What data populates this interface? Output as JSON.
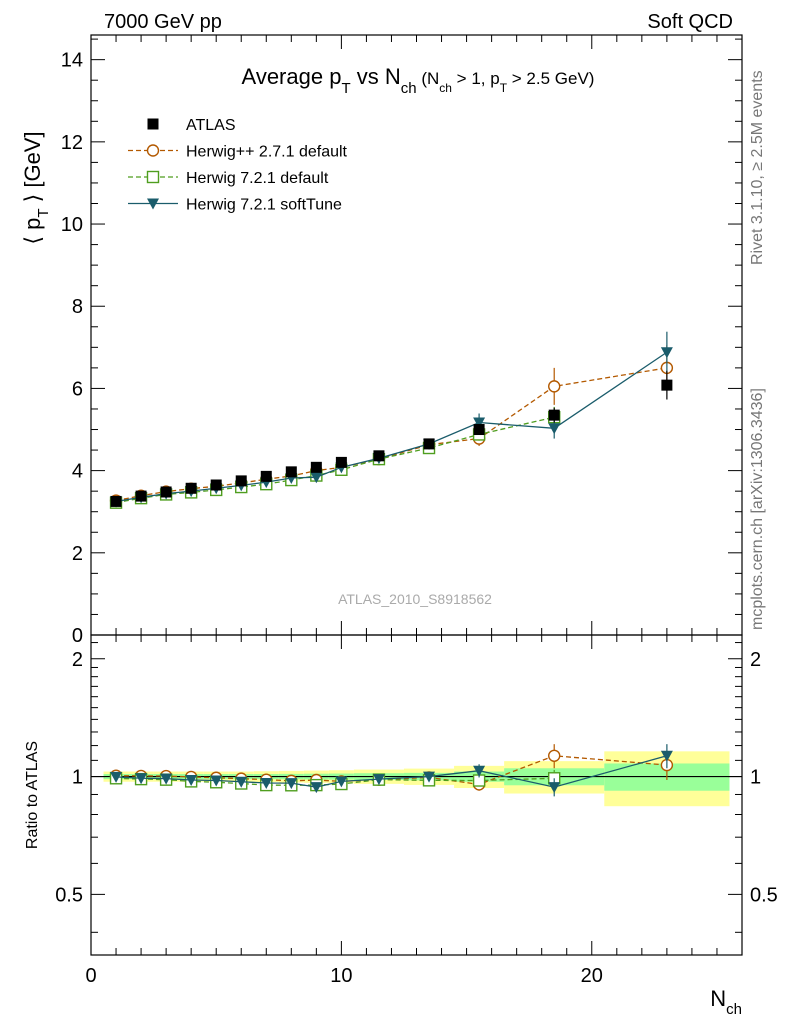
{
  "header": {
    "left": "7000 GeV pp",
    "right": "Soft QCD"
  },
  "side_text": {
    "rivet": "Rivet 3.1.10, ≥ 2.5M events",
    "mcplots": "mcplots.cern.ch [arXiv:1306.3436]"
  },
  "watermark": "ATLAS_2010_S8918562",
  "chart_data": [
    {
      "type": "scatter",
      "title": "Average p_T vs N_ch (N_ch > 1, p_T > 2.5 GeV)",
      "title_parts": {
        "main": "Average p",
        "main_sub": "T",
        "vs": " vs N",
        "vs_sub": "ch",
        "cut1": " (N",
        "cut1_sub": "ch",
        "cut2": " > 1, p",
        "cut2_sub": "T",
        "cut3": " > 2.5 GeV)"
      },
      "ylabel": "⟨ p_T ⟩ [GeV]",
      "ylabel_parts": {
        "open": "⟨ p",
        "sub": "T",
        "close": " ⟩ [GeV]"
      },
      "xlim": [
        0,
        26
      ],
      "ylim": [
        0,
        14.6
      ],
      "y_ticks": [
        0,
        2,
        4,
        6,
        8,
        10,
        12,
        14
      ],
      "legend_position": "top-left",
      "x": [
        1,
        2,
        3,
        4,
        5,
        6,
        7,
        8,
        9,
        10,
        11.5,
        13.5,
        15.5,
        18.5,
        23
      ],
      "series": [
        {
          "name": "ATLAS",
          "color": "#000000",
          "marker": "square-filled",
          "values": [
            3.25,
            3.38,
            3.48,
            3.57,
            3.65,
            3.75,
            3.86,
            3.97,
            4.08,
            4.2,
            4.36,
            4.65,
            5.0,
            5.35,
            6.08
          ],
          "errors": [
            0.04,
            0.04,
            0.04,
            0.04,
            0.04,
            0.05,
            0.05,
            0.05,
            0.06,
            0.06,
            0.07,
            0.08,
            0.12,
            0.18,
            0.35
          ]
        },
        {
          "name": "Herwig++ 2.7.1 default",
          "color": "#b35900",
          "marker": "circle-open",
          "line": "dashed",
          "values": [
            3.27,
            3.39,
            3.49,
            3.56,
            3.62,
            3.7,
            3.79,
            3.87,
            4.0,
            4.08,
            4.28,
            4.63,
            4.78,
            6.05,
            6.5
          ],
          "errors": [
            0.02,
            0.02,
            0.02,
            0.02,
            0.03,
            0.03,
            0.03,
            0.03,
            0.04,
            0.04,
            0.06,
            0.08,
            0.18,
            0.45,
            0.55
          ]
        },
        {
          "name": "Herwig 7.2.1 default",
          "color": "#4f9e1f",
          "marker": "square-open",
          "line": "dashed",
          "values": [
            3.22,
            3.33,
            3.42,
            3.47,
            3.53,
            3.6,
            3.67,
            3.77,
            3.88,
            4.02,
            4.28,
            4.55,
            4.88,
            5.3,
            null
          ],
          "errors": [
            0.02,
            0.02,
            0.02,
            0.02,
            0.03,
            0.03,
            0.03,
            0.03,
            0.04,
            0.04,
            0.06,
            0.08,
            0.15,
            0.25,
            null
          ]
        },
        {
          "name": "Herwig 7.2.1 softTune",
          "color": "#1a5c6b",
          "marker": "triangle-down-filled",
          "line": "solid",
          "values": [
            3.25,
            3.35,
            3.44,
            3.5,
            3.57,
            3.64,
            3.72,
            3.82,
            3.84,
            4.08,
            4.3,
            4.65,
            5.17,
            5.03,
            6.88
          ],
          "errors": [
            0.02,
            0.02,
            0.02,
            0.02,
            0.03,
            0.03,
            0.03,
            0.03,
            0.04,
            0.04,
            0.06,
            0.08,
            0.22,
            0.25,
            0.5
          ]
        }
      ]
    },
    {
      "type": "scatter",
      "ylabel": "Ratio to ATLAS",
      "xlabel": "N_ch",
      "xlabel_parts": {
        "main": "N",
        "sub": "ch"
      },
      "xlim": [
        0,
        26
      ],
      "ylim": [
        0.35,
        2.3
      ],
      "y_scale": "log",
      "y_tick_labels": [
        0.5,
        1,
        2
      ],
      "x_tick_labels": [
        0,
        10,
        20
      ],
      "x": [
        1,
        2,
        3,
        4,
        5,
        6,
        7,
        8,
        9,
        10,
        11.5,
        13.5,
        15.5,
        18.5,
        23
      ],
      "bands": {
        "bins": [
          [
            0.5,
            1.5
          ],
          [
            1.5,
            2.5
          ],
          [
            2.5,
            3.5
          ],
          [
            3.5,
            4.5
          ],
          [
            4.5,
            5.5
          ],
          [
            5.5,
            6.5
          ],
          [
            6.5,
            7.5
          ],
          [
            7.5,
            8.5
          ],
          [
            8.5,
            9.5
          ],
          [
            9.5,
            10.5
          ],
          [
            10.5,
            12.5
          ],
          [
            12.5,
            14.5
          ],
          [
            14.5,
            16.5
          ],
          [
            16.5,
            20.5
          ],
          [
            20.5,
            25.5
          ]
        ],
        "inner_color": "#99ff99",
        "outer_color": "#ffff99",
        "inner": [
          0.015,
          0.015,
          0.015,
          0.015,
          0.015,
          0.015,
          0.015,
          0.016,
          0.017,
          0.018,
          0.02,
          0.022,
          0.03,
          0.05,
          0.08
        ],
        "outer": [
          0.03,
          0.03,
          0.03,
          0.03,
          0.03,
          0.03,
          0.032,
          0.034,
          0.036,
          0.038,
          0.042,
          0.048,
          0.065,
          0.095,
          0.16
        ]
      },
      "series": [
        {
          "name": "Herwig++ 2.7.1 default",
          "color": "#b35900",
          "marker": "circle-open",
          "line": "dashed",
          "values": [
            1.005,
            1.004,
            1.003,
            0.998,
            0.993,
            0.988,
            0.982,
            0.975,
            0.98,
            0.972,
            0.982,
            0.995,
            0.955,
            1.13,
            1.07
          ],
          "errors": [
            0.01,
            0.01,
            0.01,
            0.01,
            0.01,
            0.01,
            0.01,
            0.01,
            0.01,
            0.01,
            0.015,
            0.02,
            0.035,
            0.08,
            0.09
          ]
        },
        {
          "name": "Herwig 7.2.1 default",
          "color": "#4f9e1f",
          "marker": "square-open",
          "line": "dashed",
          "values": [
            0.99,
            0.985,
            0.982,
            0.972,
            0.967,
            0.96,
            0.951,
            0.95,
            0.951,
            0.957,
            0.982,
            0.978,
            0.977,
            0.99,
            null
          ],
          "errors": [
            0.01,
            0.01,
            0.01,
            0.01,
            0.01,
            0.01,
            0.01,
            0.01,
            0.01,
            0.01,
            0.015,
            0.02,
            0.03,
            0.05,
            null
          ]
        },
        {
          "name": "Herwig 7.2.1 softTune",
          "color": "#1a5c6b",
          "marker": "triangle-down-filled",
          "line": "solid",
          "values": [
            0.998,
            0.99,
            0.988,
            0.98,
            0.977,
            0.97,
            0.963,
            0.962,
            0.94,
            0.972,
            0.985,
            1.0,
            1.035,
            0.94,
            1.13
          ],
          "errors": [
            0.01,
            0.01,
            0.01,
            0.01,
            0.01,
            0.01,
            0.01,
            0.01,
            0.01,
            0.01,
            0.015,
            0.02,
            0.04,
            0.05,
            0.08
          ]
        }
      ]
    }
  ]
}
